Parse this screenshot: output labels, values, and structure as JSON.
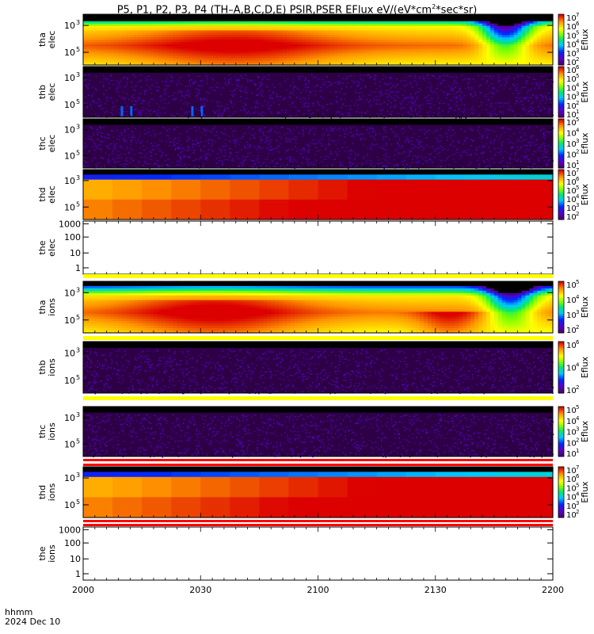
{
  "header": {
    "title_main": "P5, P1, P2, P3, P4 (TH–A,B,C,D,E) PSIR,PSER EFlux eV/(eV*cm",
    "title_sup": "2",
    "title_end": "*sec*sr)"
  },
  "footer": {
    "label_hhmm": "hhmm",
    "date": "2024 Dec 10"
  },
  "colors": {
    "red_band": "#ff0000",
    "yellow_band": "#ffff00",
    "bg_dark": "#000000"
  },
  "chart_data": {
    "type": "heatmap",
    "x_ticks": [
      "2000",
      "2030",
      "2100",
      "2130",
      "2200"
    ],
    "colorbar_unit": "Eflux",
    "panels": [
      {
        "id": "tha_elec",
        "label": [
          "tha",
          "elec"
        ],
        "kind": "elec-full",
        "y_ticks": [
          {
            "base": "10",
            "exp": "5"
          },
          {
            "base": "10",
            "exp": "3"
          }
        ],
        "cbar_ticks": [
          {
            "base": "10",
            "exp": "7"
          },
          {
            "base": "10",
            "exp": "6"
          },
          {
            "base": "10",
            "exp": "5"
          },
          {
            "base": "10",
            "exp": "4"
          },
          {
            "base": "10",
            "exp": "3"
          },
          {
            "base": "10",
            "exp": "2"
          }
        ]
      },
      {
        "id": "thb_elec",
        "label": [
          "thb",
          "elec"
        ],
        "kind": "sparse",
        "y_ticks": [
          {
            "base": "10",
            "exp": "5"
          },
          {
            "base": "10",
            "exp": "3"
          }
        ],
        "cbar_ticks": [
          {
            "base": "10",
            "exp": "6"
          },
          {
            "base": "10",
            "exp": "5"
          },
          {
            "base": "10",
            "exp": "4"
          },
          {
            "base": "10",
            "exp": "3"
          },
          {
            "base": "10",
            "exp": "2"
          },
          {
            "base": "10",
            "exp": "1"
          }
        ]
      },
      {
        "id": "thc_elec",
        "label": [
          "thc",
          "elec"
        ],
        "kind": "sparse",
        "y_ticks": [
          {
            "base": "10",
            "exp": "5"
          },
          {
            "base": "10",
            "exp": "3"
          }
        ],
        "cbar_ticks": [
          {
            "base": "10",
            "exp": "5"
          },
          {
            "base": "10",
            "exp": "4"
          },
          {
            "base": "10",
            "exp": "3"
          },
          {
            "base": "10",
            "exp": "2"
          },
          {
            "base": "10",
            "exp": "1"
          }
        ]
      },
      {
        "id": "thd_elec",
        "label": [
          "thd",
          "elec"
        ],
        "kind": "blocky",
        "y_ticks": [
          {
            "base": "10",
            "exp": "5"
          },
          {
            "base": "10",
            "exp": "3"
          }
        ],
        "cbar_ticks": [
          {
            "base": "10",
            "exp": "7"
          },
          {
            "base": "10",
            "exp": "6"
          },
          {
            "base": "10",
            "exp": "5"
          },
          {
            "base": "10",
            "exp": "4"
          },
          {
            "base": "10",
            "exp": "3"
          },
          {
            "base": "10",
            "exp": "2"
          }
        ]
      },
      {
        "id": "the_elec",
        "label": [
          "the",
          "elec"
        ],
        "kind": "empty",
        "y_ticks": [
          "1000",
          "100",
          "10",
          "1"
        ],
        "cbar_ticks": []
      },
      {
        "id": "tha_ions",
        "label": [
          "tha",
          "ions"
        ],
        "kind": "ions-full",
        "y_ticks": [
          {
            "base": "10",
            "exp": "5"
          },
          {
            "base": "10",
            "exp": "3"
          }
        ],
        "cbar_ticks": [
          {
            "base": "10",
            "exp": "5"
          },
          {
            "base": "10",
            "exp": "4"
          },
          {
            "base": "10",
            "exp": "3"
          },
          {
            "base": "10",
            "exp": "2"
          }
        ]
      },
      {
        "id": "thb_ions",
        "label": [
          "thb",
          "ions"
        ],
        "kind": "sparse",
        "y_ticks": [
          {
            "base": "10",
            "exp": "5"
          },
          {
            "base": "10",
            "exp": "3"
          }
        ],
        "cbar_ticks": [
          {
            "base": "10",
            "exp": "6"
          },
          {
            "base": "10",
            "exp": "4"
          },
          {
            "base": "10",
            "exp": "2"
          }
        ]
      },
      {
        "id": "thc_ions",
        "label": [
          "thc",
          "ions"
        ],
        "kind": "sparse",
        "y_ticks": [
          {
            "base": "10",
            "exp": "5"
          },
          {
            "base": "10",
            "exp": "3"
          }
        ],
        "cbar_ticks": [
          {
            "base": "10",
            "exp": "5"
          },
          {
            "base": "10",
            "exp": "4"
          },
          {
            "base": "10",
            "exp": "3"
          },
          {
            "base": "10",
            "exp": "2"
          },
          {
            "base": "10",
            "exp": "1"
          }
        ]
      },
      {
        "id": "thd_ions",
        "label": [
          "thd",
          "ions"
        ],
        "kind": "ions-blocky",
        "y_ticks": [
          {
            "base": "10",
            "exp": "5"
          },
          {
            "base": "10",
            "exp": "3"
          }
        ],
        "cbar_ticks": [
          {
            "base": "10",
            "exp": "7"
          },
          {
            "base": "10",
            "exp": "6"
          },
          {
            "base": "10",
            "exp": "5"
          },
          {
            "base": "10",
            "exp": "4"
          },
          {
            "base": "10",
            "exp": "3"
          },
          {
            "base": "10",
            "exp": "2"
          }
        ]
      },
      {
        "id": "the_ions",
        "label": [
          "the",
          "ions"
        ],
        "kind": "empty",
        "y_ticks": [
          "1000",
          "100",
          "10",
          "1"
        ],
        "cbar_ticks": []
      }
    ]
  }
}
